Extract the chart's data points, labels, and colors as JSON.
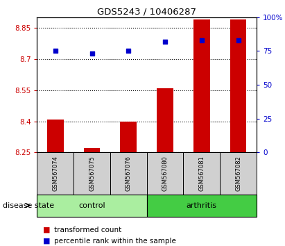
{
  "title": "GDS5243 / 10406287",
  "samples": [
    "GSM567074",
    "GSM567075",
    "GSM567076",
    "GSM567080",
    "GSM567081",
    "GSM567082"
  ],
  "groups": [
    "control",
    "control",
    "control",
    "arthritis",
    "arthritis",
    "arthritis"
  ],
  "transformed_count": [
    8.41,
    8.27,
    8.4,
    8.56,
    8.89,
    8.89
  ],
  "percentile_rank": [
    75,
    73,
    75,
    82,
    83,
    83
  ],
  "ylim_left": [
    8.25,
    8.9
  ],
  "yticks_left": [
    8.25,
    8.4,
    8.55,
    8.7,
    8.85
  ],
  "ylim_right": [
    0,
    100
  ],
  "yticks_right": [
    0,
    25,
    50,
    75,
    100
  ],
  "ytick_labels_right": [
    "0",
    "25",
    "50",
    "75",
    "100%"
  ],
  "bar_color": "#cc0000",
  "dot_color": "#0000cc",
  "bar_width": 0.45,
  "control_color": "#aaeea0",
  "arthritis_color": "#44cc44",
  "label_color_left": "#cc0000",
  "label_color_right": "#0000cc",
  "background_labels": "#d0d0d0",
  "legend_red_label": "transformed count",
  "legend_blue_label": "percentile rank within the sample",
  "disease_state_label": "disease state",
  "control_label": "control",
  "arthritis_label": "arthritis"
}
